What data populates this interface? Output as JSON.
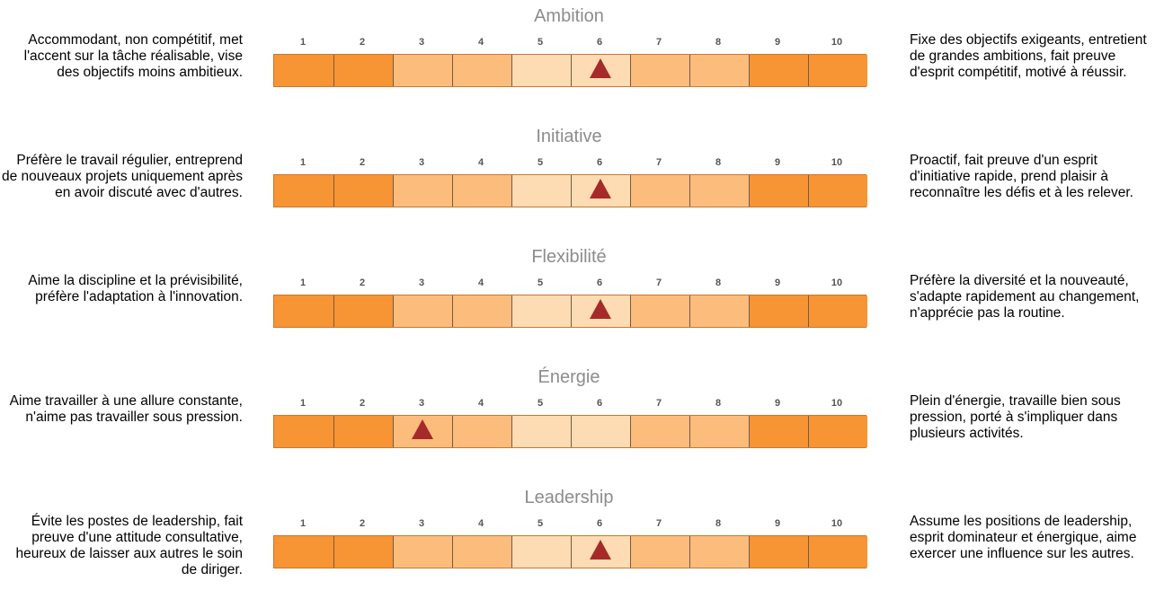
{
  "colors": {
    "dark": "#f79433",
    "medium": "#fcbc7c",
    "light": "#fddcb3",
    "marker": "#a62a2a",
    "title": "#8c8c8c"
  },
  "chart_data": {
    "type": "table",
    "ticks": [
      "1",
      "2",
      "3",
      "4",
      "5",
      "6",
      "7",
      "8",
      "9",
      "10"
    ],
    "segment_shades": [
      "dark",
      "dark",
      "medium",
      "medium",
      "light",
      "light",
      "medium",
      "medium",
      "dark",
      "dark"
    ],
    "scales": [
      {
        "title": "Ambition",
        "score": 6,
        "left_text": "Accommodant, non compétitif, met l'accent sur la tâche réalisable, vise des objectifs moins ambitieux.",
        "right_text": "Fixe des objectifs exigeants, entretient de grandes ambitions, fait preuve d'esprit compétitif, motivé à réussir."
      },
      {
        "title": "Initiative",
        "score": 6,
        "left_text": "Préfère le travail régulier, entreprend de nouveaux projets uniquement après en avoir discuté avec d'autres.",
        "right_text": "Proactif, fait preuve d'un esprit d'initiative rapide, prend plaisir à reconnaître les défis et à les relever."
      },
      {
        "title": "Flexibilité",
        "score": 6,
        "left_text": "Aime la discipline et la prévisibilité, préfère l'adaptation à l'innovation.",
        "right_text": "Préfère la diversité et la nouveauté, s'adapte rapidement au changement, n'apprécie pas la routine."
      },
      {
        "title": "Énergie",
        "score": 3,
        "left_text": "Aime travailler à une allure constante, n'aime pas travailler sous pression.",
        "right_text": "Plein d'énergie, travaille bien sous pression, porté à s'impliquer dans plusieurs activités."
      },
      {
        "title": "Leadership",
        "score": 6,
        "left_text": "Évite les postes de leadership, fait preuve d'une attitude consultative, heureux de laisser aux autres le soin de diriger.",
        "right_text": "Assume les positions de leadership, esprit dominateur et énergique, aime exercer une influence sur les autres."
      }
    ]
  }
}
